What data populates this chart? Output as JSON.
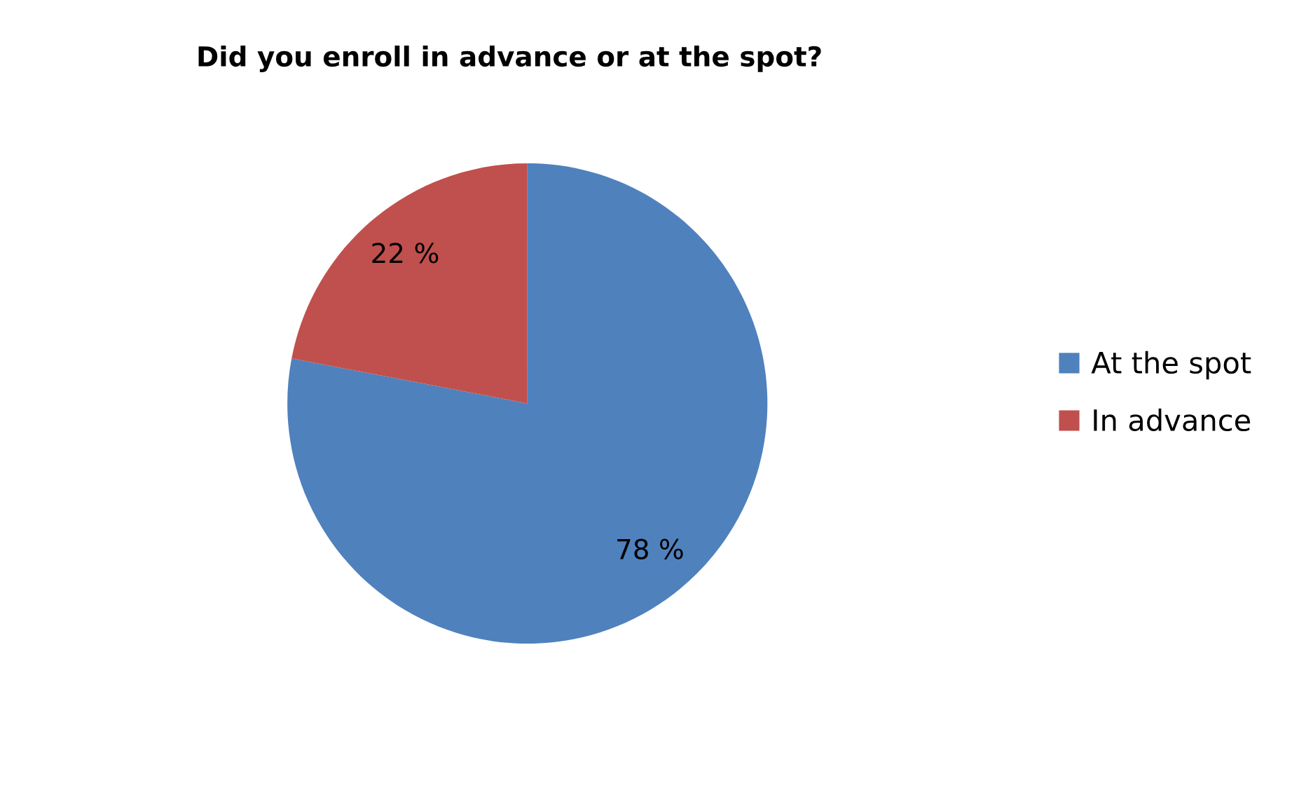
{
  "chart_data": {
    "type": "pie",
    "title": "Did you enroll in advance or at the spot?",
    "categories": [
      "At the spot",
      "In advance"
    ],
    "values": [
      78,
      22
    ],
    "colors": [
      "#4f81bd",
      "#c0504d"
    ],
    "value_labels": [
      "78 %",
      "22 %"
    ],
    "legend": "right"
  }
}
